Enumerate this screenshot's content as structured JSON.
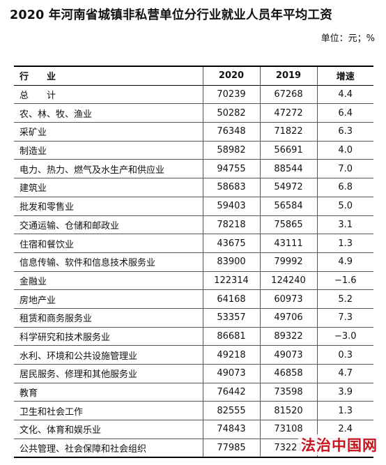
{
  "title": "2020 年河南省城镇非私营单位分行业就业人员年平均工资",
  "unit": "单位：元；%",
  "table": {
    "headers": [
      "行　　业",
      "2020",
      "2019",
      "增速"
    ],
    "rows": [
      [
        "总　　计",
        "70239",
        "67268",
        "4.4"
      ],
      [
        "农、林、牧、渔业",
        "50282",
        "47272",
        "6.4"
      ],
      [
        "采矿业",
        "76348",
        "71822",
        "6.3"
      ],
      [
        "制造业",
        "58982",
        "56691",
        "4.0"
      ],
      [
        "电力、热力、燃气及水生产和供应业",
        "94755",
        "88544",
        "7.0"
      ],
      [
        "建筑业",
        "58683",
        "54972",
        "6.8"
      ],
      [
        "批发和零售业",
        "59403",
        "56584",
        "5.0"
      ],
      [
        "交通运输、仓储和邮政业",
        "78218",
        "75865",
        "3.1"
      ],
      [
        "住宿和餐饮业",
        "43675",
        "43111",
        "1.3"
      ],
      [
        "信息传输、软件和信息技术服务业",
        "83900",
        "79992",
        "4.9"
      ],
      [
        "金融业",
        "122314",
        "124240",
        "−1.6"
      ],
      [
        "房地产业",
        "64168",
        "60973",
        "5.2"
      ],
      [
        "租赁和商务服务业",
        "53357",
        "49706",
        "7.3"
      ],
      [
        "科学研究和技术服务业",
        "86681",
        "89322",
        "−3.0"
      ],
      [
        "水利、环境和公共设施管理业",
        "49218",
        "49073",
        "0.3"
      ],
      [
        "居民服务、修理和其他服务业",
        "49073",
        "46858",
        "4.7"
      ],
      [
        "教育",
        "76442",
        "73598",
        "3.9"
      ],
      [
        "卫生和社会工作",
        "82555",
        "81520",
        "1.3"
      ],
      [
        "文化、体育和娱乐业",
        "74843",
        "73108",
        "2.4"
      ],
      [
        "公共管理、社会保障和社会组织",
        "77985",
        "73221",
        "6.5"
      ]
    ]
  },
  "watermark": "法治中国网",
  "colors": {
    "watermark": "#c8121c",
    "text": "#111111",
    "rule": "#000000"
  }
}
